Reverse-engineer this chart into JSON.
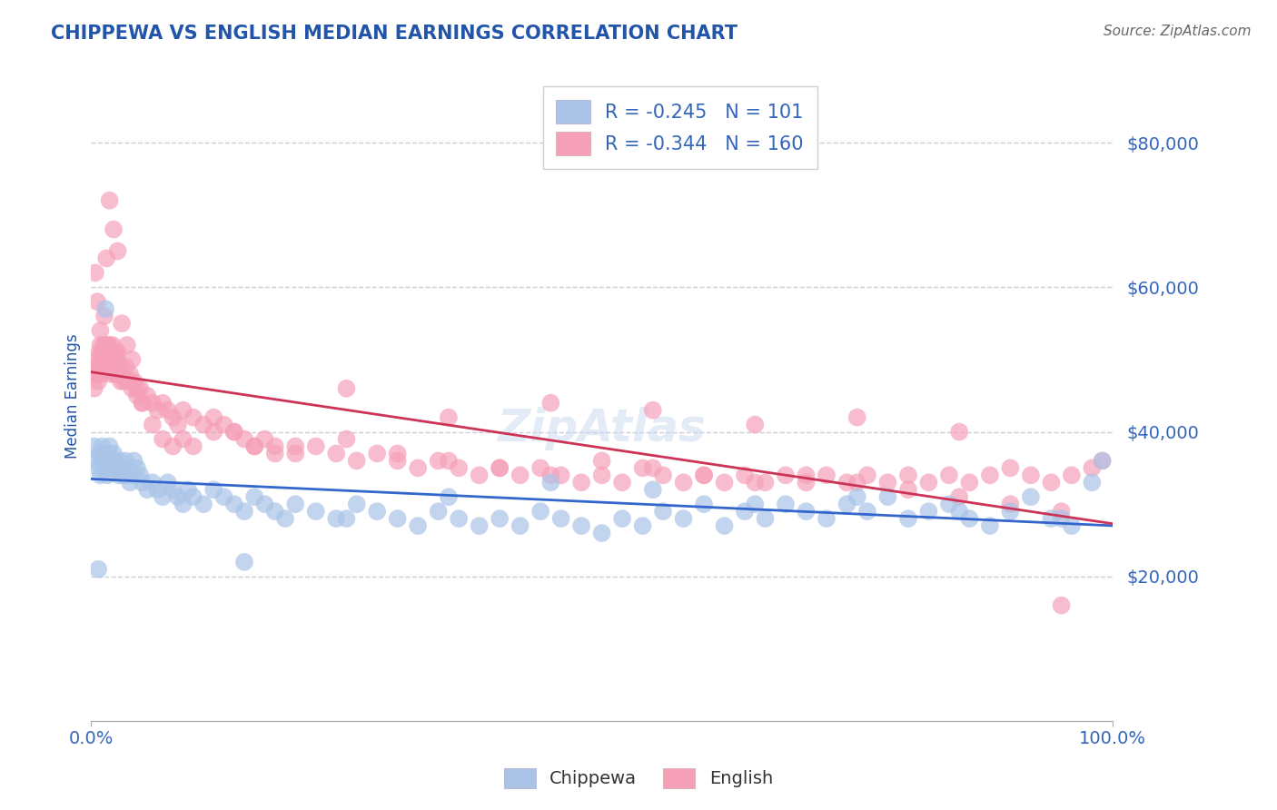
{
  "title": "CHIPPEWA VS ENGLISH MEDIAN EARNINGS CORRELATION CHART",
  "source": "Source: ZipAtlas.com",
  "ylabel": "Median Earnings",
  "title_color": "#2255aa",
  "axis_label_color": "#2255aa",
  "tick_color": "#3366bb",
  "background_color": "#ffffff",
  "grid_color": "#ccccdd",
  "chippewa_color": "#aac4e8",
  "english_color": "#f5a0b8",
  "chippewa_line_color": "#3366cc",
  "english_line_color": "#cc3355",
  "chippewa_R": -0.245,
  "chippewa_N": 101,
  "english_R": -0.344,
  "english_N": 160,
  "xlim": [
    0.0,
    1.0
  ],
  "ylim": [
    0,
    90000
  ],
  "yticks": [
    0,
    20000,
    40000,
    60000,
    80000
  ],
  "chippewa_x": [
    0.003,
    0.005,
    0.007,
    0.008,
    0.009,
    0.01,
    0.011,
    0.012,
    0.013,
    0.015,
    0.016,
    0.017,
    0.018,
    0.019,
    0.02,
    0.022,
    0.023,
    0.025,
    0.027,
    0.028,
    0.03,
    0.032,
    0.034,
    0.036,
    0.038,
    0.04,
    0.042,
    0.045,
    0.048,
    0.05,
    0.055,
    0.06,
    0.065,
    0.07,
    0.075,
    0.08,
    0.085,
    0.09,
    0.095,
    0.1,
    0.11,
    0.12,
    0.13,
    0.14,
    0.15,
    0.16,
    0.17,
    0.18,
    0.19,
    0.2,
    0.22,
    0.24,
    0.26,
    0.28,
    0.3,
    0.32,
    0.34,
    0.36,
    0.38,
    0.4,
    0.42,
    0.44,
    0.46,
    0.48,
    0.5,
    0.52,
    0.54,
    0.56,
    0.58,
    0.6,
    0.62,
    0.64,
    0.66,
    0.68,
    0.7,
    0.72,
    0.74,
    0.76,
    0.78,
    0.8,
    0.82,
    0.84,
    0.86,
    0.88,
    0.9,
    0.92,
    0.94,
    0.96,
    0.98,
    0.99,
    0.15,
    0.25,
    0.35,
    0.45,
    0.55,
    0.65,
    0.75,
    0.85,
    0.95,
    0.007,
    0.014
  ],
  "chippewa_y": [
    38000,
    36000,
    35000,
    37000,
    34000,
    36000,
    38000,
    37000,
    35000,
    36000,
    34000,
    37000,
    38000,
    36000,
    35000,
    37000,
    36000,
    35000,
    34000,
    36000,
    35000,
    34000,
    36000,
    35000,
    33000,
    34000,
    36000,
    35000,
    34000,
    33000,
    32000,
    33000,
    32000,
    31000,
    33000,
    32000,
    31000,
    30000,
    32000,
    31000,
    30000,
    32000,
    31000,
    30000,
    29000,
    31000,
    30000,
    29000,
    28000,
    30000,
    29000,
    28000,
    30000,
    29000,
    28000,
    27000,
    29000,
    28000,
    27000,
    28000,
    27000,
    29000,
    28000,
    27000,
    26000,
    28000,
    27000,
    29000,
    28000,
    30000,
    27000,
    29000,
    28000,
    30000,
    29000,
    28000,
    30000,
    29000,
    31000,
    28000,
    29000,
    30000,
    28000,
    27000,
    29000,
    31000,
    28000,
    27000,
    33000,
    36000,
    22000,
    28000,
    31000,
    33000,
    32000,
    30000,
    31000,
    29000,
    28000,
    21000,
    57000
  ],
  "english_x": [
    0.002,
    0.003,
    0.004,
    0.005,
    0.006,
    0.007,
    0.008,
    0.008,
    0.009,
    0.01,
    0.01,
    0.011,
    0.011,
    0.012,
    0.012,
    0.013,
    0.013,
    0.014,
    0.014,
    0.015,
    0.015,
    0.016,
    0.016,
    0.017,
    0.017,
    0.018,
    0.018,
    0.019,
    0.019,
    0.02,
    0.02,
    0.021,
    0.021,
    0.022,
    0.022,
    0.023,
    0.023,
    0.024,
    0.024,
    0.025,
    0.025,
    0.026,
    0.026,
    0.027,
    0.028,
    0.029,
    0.03,
    0.032,
    0.034,
    0.036,
    0.038,
    0.04,
    0.042,
    0.045,
    0.048,
    0.05,
    0.055,
    0.06,
    0.065,
    0.07,
    0.075,
    0.08,
    0.085,
    0.09,
    0.1,
    0.11,
    0.12,
    0.13,
    0.14,
    0.15,
    0.16,
    0.17,
    0.18,
    0.2,
    0.22,
    0.24,
    0.26,
    0.28,
    0.3,
    0.32,
    0.34,
    0.36,
    0.38,
    0.4,
    0.42,
    0.44,
    0.46,
    0.48,
    0.5,
    0.52,
    0.54,
    0.56,
    0.58,
    0.6,
    0.62,
    0.64,
    0.66,
    0.68,
    0.7,
    0.72,
    0.74,
    0.76,
    0.78,
    0.8,
    0.82,
    0.84,
    0.86,
    0.88,
    0.9,
    0.92,
    0.94,
    0.96,
    0.98,
    0.99,
    0.25,
    0.35,
    0.45,
    0.55,
    0.65,
    0.75,
    0.85,
    0.95,
    0.015,
    0.018,
    0.022,
    0.026,
    0.03,
    0.035,
    0.04,
    0.045,
    0.05,
    0.06,
    0.07,
    0.08,
    0.09,
    0.1,
    0.12,
    0.14,
    0.16,
    0.18,
    0.2,
    0.25,
    0.3,
    0.35,
    0.4,
    0.45,
    0.5,
    0.55,
    0.6,
    0.65,
    0.7,
    0.75,
    0.8,
    0.85,
    0.9,
    0.95,
    0.004,
    0.006,
    0.009,
    0.013
  ],
  "english_y": [
    48000,
    46000,
    49000,
    50000,
    48000,
    47000,
    51000,
    49000,
    52000,
    50000,
    48000,
    51000,
    49000,
    52000,
    50000,
    51000,
    49000,
    52000,
    50000,
    51000,
    49000,
    52000,
    50000,
    51000,
    49000,
    50000,
    52000,
    50000,
    48000,
    51000,
    49000,
    52000,
    50000,
    51000,
    49000,
    50000,
    48000,
    51000,
    49000,
    48000,
    50000,
    49000,
    51000,
    48000,
    49000,
    47000,
    48000,
    47000,
    49000,
    47000,
    48000,
    46000,
    47000,
    45000,
    46000,
    44000,
    45000,
    44000,
    43000,
    44000,
    43000,
    42000,
    41000,
    43000,
    42000,
    41000,
    40000,
    41000,
    40000,
    39000,
    38000,
    39000,
    38000,
    37000,
    38000,
    37000,
    36000,
    37000,
    36000,
    35000,
    36000,
    35000,
    34000,
    35000,
    34000,
    35000,
    34000,
    33000,
    34000,
    33000,
    35000,
    34000,
    33000,
    34000,
    33000,
    34000,
    33000,
    34000,
    33000,
    34000,
    33000,
    34000,
    33000,
    34000,
    33000,
    34000,
    33000,
    34000,
    35000,
    34000,
    33000,
    34000,
    35000,
    36000,
    46000,
    42000,
    44000,
    43000,
    41000,
    42000,
    40000,
    16000,
    64000,
    72000,
    68000,
    65000,
    55000,
    52000,
    50000,
    46000,
    44000,
    41000,
    39000,
    38000,
    39000,
    38000,
    42000,
    40000,
    38000,
    37000,
    38000,
    39000,
    37000,
    36000,
    35000,
    34000,
    36000,
    35000,
    34000,
    33000,
    34000,
    33000,
    32000,
    31000,
    30000,
    29000,
    62000,
    58000,
    54000,
    56000
  ]
}
